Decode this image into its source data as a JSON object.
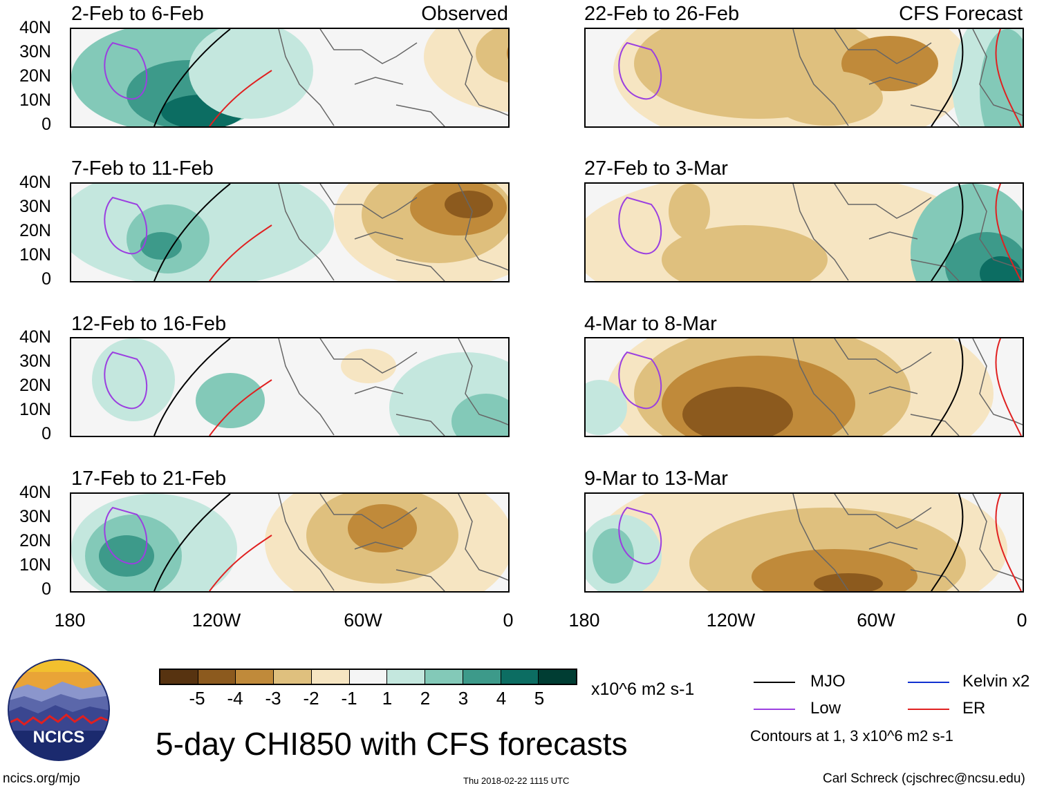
{
  "chart_data": {
    "type": "heatmap",
    "title": "5-day CHI850 with CFS forecasts",
    "variable": "CHI850",
    "units": "x10^6 m2 s-1",
    "colorbar": {
      "labels": [
        "-5",
        "-4",
        "-3",
        "-2",
        "-1",
        "1",
        "2",
        "3",
        "4",
        "5"
      ],
      "colors": [
        "#573310",
        "#8c5a1e",
        "#c08a3a",
        "#dfc07e",
        "#f6e5c2",
        "#f5f5f5",
        "#c4e7de",
        "#83c9b8",
        "#3d9a8a",
        "#0c6d62",
        "#003d33"
      ]
    },
    "y_ticks": [
      "40N",
      "30N",
      "20N",
      "10N",
      "0"
    ],
    "x_ticks": [
      "180",
      "120W",
      "60W",
      "0"
    ],
    "xlim": [
      -180,
      0
    ],
    "ylim": [
      0,
      40
    ],
    "columns": [
      "Observed",
      "CFS Forecast"
    ],
    "panels_left": [
      {
        "title": "2-Feb to 6-Feb",
        "label": "Observed"
      },
      {
        "title": "7-Feb to 11-Feb"
      },
      {
        "title": "12-Feb to 16-Feb"
      },
      {
        "title": "17-Feb to 21-Feb"
      }
    ],
    "panels_right": [
      {
        "title": "22-Feb to 26-Feb",
        "label": "CFS Forecast"
      },
      {
        "title": "27-Feb to 3-Mar"
      },
      {
        "title": "4-Mar to 8-Mar"
      },
      {
        "title": "9-Mar to 13-Mar"
      }
    ],
    "legend": [
      {
        "name": "MJO",
        "color": "#000000"
      },
      {
        "name": "Kelvin x2",
        "color": "#1030d0"
      },
      {
        "name": "Low",
        "color": "#9b3fe0"
      },
      {
        "name": "ER",
        "color": "#e02020"
      }
    ],
    "contour_note": "Contours at 1, 3 x10^6 m2 s-1"
  },
  "footer": {
    "site": "ncics.org/mjo",
    "timestamp": "Thu 2018-02-22 1115 UTC",
    "author": "Carl Schreck (cjschrec@ncsu.edu)",
    "logo_text": "NCICS"
  }
}
